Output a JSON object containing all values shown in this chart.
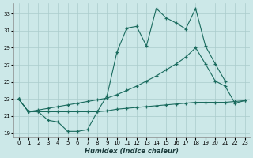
{
  "xlabel": "Humidex (Indice chaleur)",
  "background_color": "#cce8e8",
  "grid_color": "#aacccc",
  "line_color": "#1a6b5e",
  "xlim": [
    -0.5,
    23.5
  ],
  "ylim": [
    18.5,
    34.2
  ],
  "xticks": [
    0,
    1,
    2,
    3,
    4,
    5,
    6,
    7,
    8,
    9,
    10,
    11,
    12,
    13,
    14,
    15,
    16,
    17,
    18,
    19,
    20,
    21,
    22,
    23
  ],
  "yticks": [
    19,
    21,
    23,
    25,
    27,
    29,
    31,
    33
  ],
  "line1_x": [
    0,
    1,
    2,
    3,
    4,
    5,
    6,
    7,
    8,
    9,
    10,
    11,
    12,
    13,
    14,
    15,
    16,
    17,
    18,
    19,
    20,
    21
  ],
  "line1_y": [
    23.0,
    21.5,
    21.5,
    20.5,
    20.3,
    19.2,
    19.2,
    19.4,
    21.5,
    23.4,
    28.5,
    31.3,
    31.5,
    29.2,
    33.6,
    32.5,
    31.9,
    31.2,
    33.6,
    29.2,
    27.1,
    25.1
  ],
  "line2_x": [
    0,
    1,
    2,
    3,
    4,
    5,
    6,
    7,
    8,
    9,
    10,
    11,
    12,
    13,
    14,
    15,
    16,
    17,
    18,
    19,
    20,
    21,
    22,
    23
  ],
  "line2_y": [
    23.0,
    21.5,
    21.7,
    21.9,
    22.1,
    22.3,
    22.5,
    22.7,
    22.9,
    23.1,
    23.5,
    24.0,
    24.5,
    25.1,
    25.7,
    26.4,
    27.1,
    27.9,
    29.0,
    27.1,
    25.1,
    24.5,
    22.5,
    22.8
  ],
  "line3_x": [
    0,
    1,
    2,
    3,
    4,
    5,
    6,
    7,
    8,
    9,
    10,
    11,
    12,
    13,
    14,
    15,
    16,
    17,
    18,
    19,
    20,
    21,
    22,
    23
  ],
  "line3_y": [
    23.0,
    21.5,
    21.5,
    21.5,
    21.5,
    21.5,
    21.5,
    21.5,
    21.5,
    21.6,
    21.8,
    21.9,
    22.0,
    22.1,
    22.2,
    22.3,
    22.4,
    22.5,
    22.6,
    22.6,
    22.6,
    22.6,
    22.7,
    22.8
  ]
}
